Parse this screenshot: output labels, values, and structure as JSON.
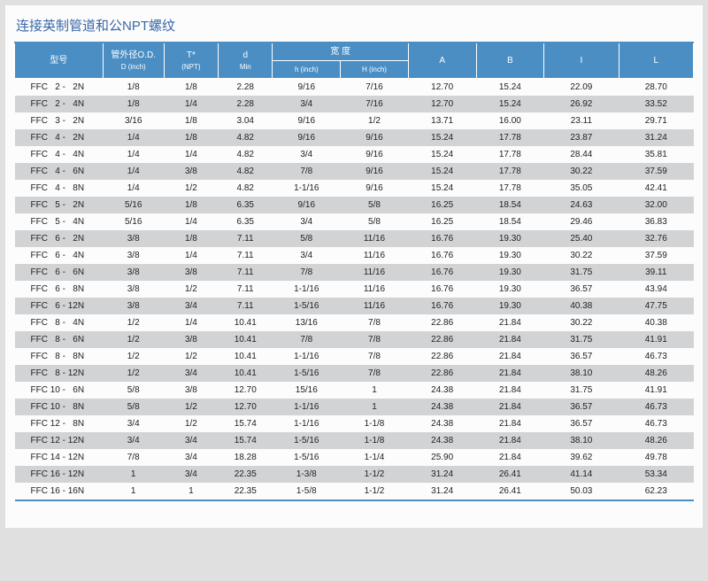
{
  "title": "连接英制管道和公NPT螺纹",
  "thead": {
    "model": "型号",
    "od": "管外径O.D.",
    "od_sub": "D (inch)",
    "t": "T*",
    "t_sub": "(NPT)",
    "d": "d",
    "d_sub": "Min",
    "width": "宽  度",
    "h": "h (inch)",
    "H": "H (inch)",
    "A": "A",
    "B": "B",
    "I": "I",
    "L": "L"
  },
  "rows": [
    {
      "model": "FFC   2 -   2N",
      "od": "1/8",
      "t": "1/8",
      "d": "2.28",
      "h": "9/16",
      "H": "7/16",
      "A": "12.70",
      "B": "15.24",
      "I": "22.09",
      "L": "28.70"
    },
    {
      "model": "FFC   2 -   4N",
      "od": "1/8",
      "t": "1/4",
      "d": "2.28",
      "h": "3/4",
      "H": "7/16",
      "A": "12.70",
      "B": "15.24",
      "I": "26.92",
      "L": "33.52"
    },
    {
      "model": "FFC   3 -   2N",
      "od": "3/16",
      "t": "1/8",
      "d": "3.04",
      "h": "9/16",
      "H": "1/2",
      "A": "13.71",
      "B": "16.00",
      "I": "23.11",
      "L": "29.71"
    },
    {
      "model": "FFC   4 -   2N",
      "od": "1/4",
      "t": "1/8",
      "d": "4.82",
      "h": "9/16",
      "H": "9/16",
      "A": "15.24",
      "B": "17.78",
      "I": "23.87",
      "L": "31.24"
    },
    {
      "model": "FFC   4 -   4N",
      "od": "1/4",
      "t": "1/4",
      "d": "4.82",
      "h": "3/4",
      "H": "9/16",
      "A": "15.24",
      "B": "17.78",
      "I": "28.44",
      "L": "35.81"
    },
    {
      "model": "FFC   4 -   6N",
      "od": "1/4",
      "t": "3/8",
      "d": "4.82",
      "h": "7/8",
      "H": "9/16",
      "A": "15.24",
      "B": "17.78",
      "I": "30.22",
      "L": "37.59"
    },
    {
      "model": "FFC   4 -   8N",
      "od": "1/4",
      "t": "1/2",
      "d": "4.82",
      "h": "1-1/16",
      "H": "9/16",
      "A": "15.24",
      "B": "17.78",
      "I": "35.05",
      "L": "42.41"
    },
    {
      "model": "FFC   5 -   2N",
      "od": "5/16",
      "t": "1/8",
      "d": "6.35",
      "h": "9/16",
      "H": "5/8",
      "A": "16.25",
      "B": "18.54",
      "I": "24.63",
      "L": "32.00"
    },
    {
      "model": "FFC   5 -   4N",
      "od": "5/16",
      "t": "1/4",
      "d": "6.35",
      "h": "3/4",
      "H": "5/8",
      "A": "16.25",
      "B": "18.54",
      "I": "29.46",
      "L": "36.83"
    },
    {
      "model": "FFC   6 -   2N",
      "od": "3/8",
      "t": "1/8",
      "d": "7.11",
      "h": "5/8",
      "H": "11/16",
      "A": "16.76",
      "B": "19.30",
      "I": "25.40",
      "L": "32.76"
    },
    {
      "model": "FFC   6 -   4N",
      "od": "3/8",
      "t": "1/4",
      "d": "7.11",
      "h": "3/4",
      "H": "11/16",
      "A": "16.76",
      "B": "19.30",
      "I": "30.22",
      "L": "37.59"
    },
    {
      "model": "FFC   6 -   6N",
      "od": "3/8",
      "t": "3/8",
      "d": "7.11",
      "h": "7/8",
      "H": "11/16",
      "A": "16.76",
      "B": "19.30",
      "I": "31.75",
      "L": "39.11"
    },
    {
      "model": "FFC   6 -   8N",
      "od": "3/8",
      "t": "1/2",
      "d": "7.11",
      "h": "1-1/16",
      "H": "11/16",
      "A": "16.76",
      "B": "19.30",
      "I": "36.57",
      "L": "43.94"
    },
    {
      "model": "FFC   6 - 12N",
      "od": "3/8",
      "t": "3/4",
      "d": "7.11",
      "h": "1-5/16",
      "H": "11/16",
      "A": "16.76",
      "B": "19.30",
      "I": "40.38",
      "L": "47.75"
    },
    {
      "model": "FFC   8 -   4N",
      "od": "1/2",
      "t": "1/4",
      "d": "10.41",
      "h": "13/16",
      "H": "7/8",
      "A": "22.86",
      "B": "21.84",
      "I": "30.22",
      "L": "40.38"
    },
    {
      "model": "FFC   8 -   6N",
      "od": "1/2",
      "t": "3/8",
      "d": "10.41",
      "h": "7/8",
      "H": "7/8",
      "A": "22.86",
      "B": "21.84",
      "I": "31.75",
      "L": "41.91"
    },
    {
      "model": "FFC   8 -   8N",
      "od": "1/2",
      "t": "1/2",
      "d": "10.41",
      "h": "1-1/16",
      "H": "7/8",
      "A": "22.86",
      "B": "21.84",
      "I": "36.57",
      "L": "46.73"
    },
    {
      "model": "FFC   8 - 12N",
      "od": "1/2",
      "t": "3/4",
      "d": "10.41",
      "h": "1-5/16",
      "H": "7/8",
      "A": "22.86",
      "B": "21.84",
      "I": "38.10",
      "L": "48.26"
    },
    {
      "model": "FFC 10 -   6N",
      "od": "5/8",
      "t": "3/8",
      "d": "12.70",
      "h": "15/16",
      "H": "1",
      "A": "24.38",
      "B": "21.84",
      "I": "31.75",
      "L": "41.91"
    },
    {
      "model": "FFC 10 -   8N",
      "od": "5/8",
      "t": "1/2",
      "d": "12.70",
      "h": "1-1/16",
      "H": "1",
      "A": "24.38",
      "B": "21.84",
      "I": "36.57",
      "L": "46.73"
    },
    {
      "model": "FFC 12 -   8N",
      "od": "3/4",
      "t": "1/2",
      "d": "15.74",
      "h": "1-1/16",
      "H": "1-1/8",
      "A": "24.38",
      "B": "21.84",
      "I": "36.57",
      "L": "46.73"
    },
    {
      "model": "FFC 12 - 12N",
      "od": "3/4",
      "t": "3/4",
      "d": "15.74",
      "h": "1-5/16",
      "H": "1-1/8",
      "A": "24.38",
      "B": "21.84",
      "I": "38.10",
      "L": "48.26"
    },
    {
      "model": "FFC 14 - 12N",
      "od": "7/8",
      "t": "3/4",
      "d": "18.28",
      "h": "1-5/16",
      "H": "1-1/4",
      "A": "25.90",
      "B": "21.84",
      "I": "39.62",
      "L": "49.78"
    },
    {
      "model": "FFC 16 - 12N",
      "od": "1",
      "t": "3/4",
      "d": "22.35",
      "h": "1-3/8",
      "H": "1-1/2",
      "A": "31.24",
      "B": "26.41",
      "I": "41.14",
      "L": "53.34"
    },
    {
      "model": "FFC 16 - 16N",
      "od": "1",
      "t": "1",
      "d": "22.35",
      "h": "1-5/8",
      "H": "1-1/2",
      "A": "31.24",
      "B": "26.41",
      "I": "50.03",
      "L": "62.23"
    }
  ],
  "col_widths": [
    "13%",
    "9%",
    "8%",
    "8%",
    "10%",
    "10%",
    "10%",
    "10%",
    "11%",
    "11%"
  ]
}
